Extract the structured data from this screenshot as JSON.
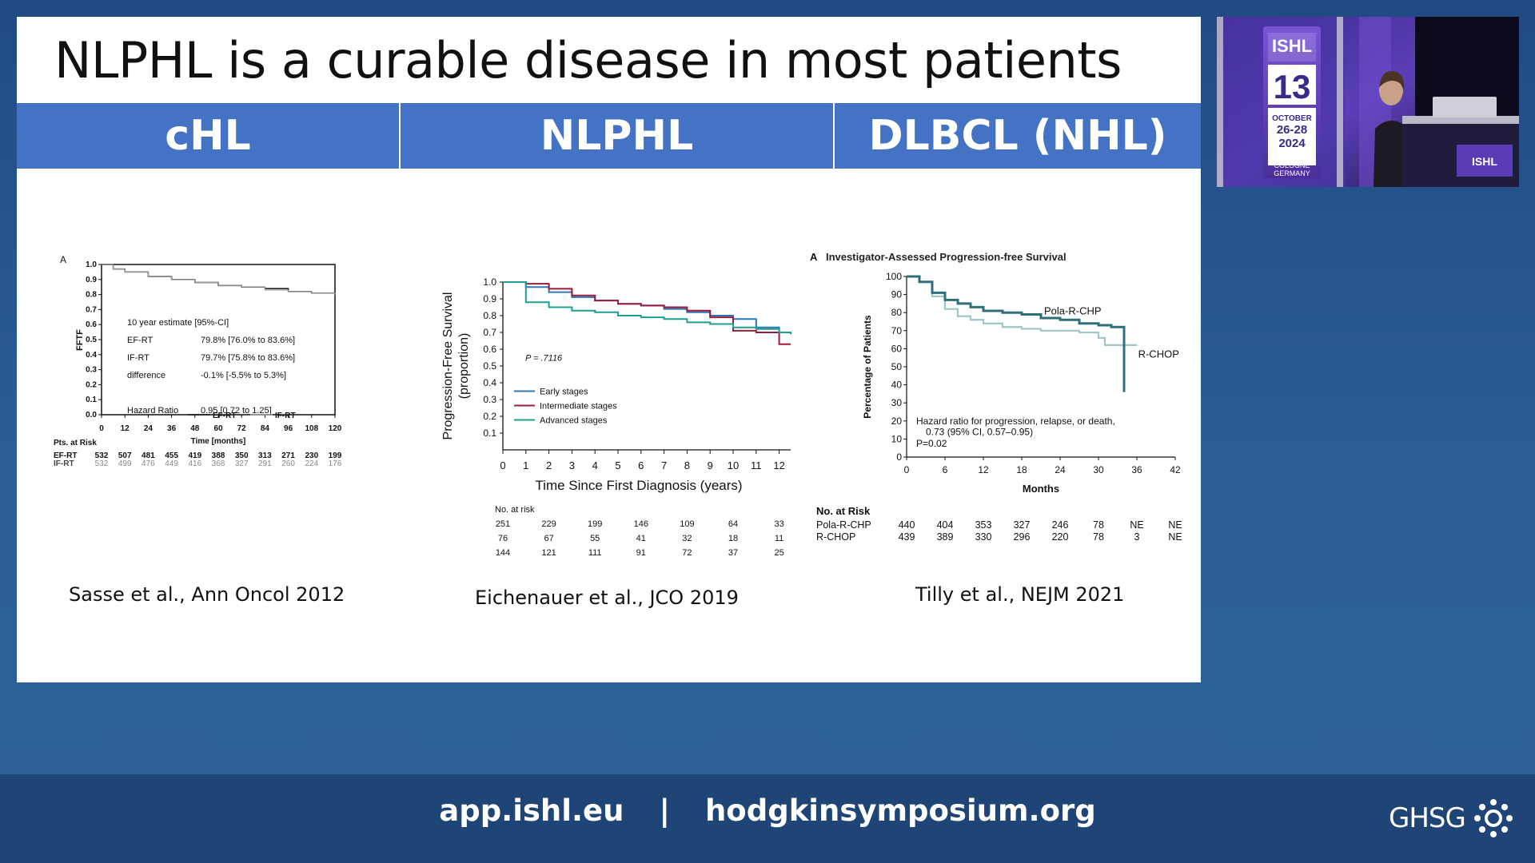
{
  "slide": {
    "title": "NLPHL is a curable disease in most patients",
    "columns": [
      "cHL",
      "NLPHL",
      "DLBCL (NHL)"
    ]
  },
  "citations": {
    "chl": "Sasse et al., Ann Oncol 2012",
    "nlphl": "Eichenauer et al., JCO 2019",
    "dlbcl": "Tilly et al., NEJM 2021"
  },
  "footer": {
    "link1": "app.ishl.eu",
    "separator": "|",
    "link2": "hodgkinsymposium.org",
    "logo_text": "GHSG"
  },
  "inset": {
    "banner_logo": "ISHL",
    "banner_number": "13",
    "banner_date_month": "OCTOBER",
    "banner_date_days": "26-28",
    "banner_date_year": "2024",
    "banner_city": "COLOGNE",
    "banner_country": "GERMANY"
  },
  "colors": {
    "header_band": "#4472c4",
    "nlphl_early": "#2e75b6",
    "nlphl_intermediate": "#9b1b3b",
    "nlphl_advanced": "#1aa090",
    "polar_rchp": "#2f6f7a",
    "rchop": "#9ec5c8"
  },
  "chart_data": [
    {
      "type": "line",
      "panel_letter": "A",
      "title": "",
      "xlabel": "Time [months]",
      "ylabel": "FFTF",
      "xlim": [
        0,
        120
      ],
      "ylim": [
        0,
        1.0
      ],
      "x_ticks": [
        0,
        12,
        24,
        36,
        48,
        60,
        72,
        84,
        96,
        108,
        120
      ],
      "y_ticks": [
        "0.0",
        "0.1",
        "0.2",
        "0.3",
        "0.4",
        "0.5",
        "0.6",
        "0.7",
        "0.8",
        "0.9",
        "1.0"
      ],
      "series": [
        {
          "name": "EF-RT",
          "x": [
            0,
            6,
            12,
            24,
            36,
            48,
            60,
            72,
            84,
            96,
            108,
            120
          ],
          "y": [
            1.0,
            0.97,
            0.95,
            0.92,
            0.9,
            0.88,
            0.86,
            0.85,
            0.84,
            0.82,
            0.81,
            0.8
          ]
        },
        {
          "name": "IF-RT",
          "x": [
            0,
            6,
            12,
            24,
            36,
            48,
            60,
            72,
            84,
            96,
            108,
            120
          ],
          "y": [
            1.0,
            0.97,
            0.95,
            0.92,
            0.9,
            0.88,
            0.86,
            0.85,
            0.83,
            0.82,
            0.81,
            0.8
          ]
        }
      ],
      "annotation_header": "10 year estimate [95%-CI]",
      "annotations": [
        {
          "label": "EF-RT",
          "value": "79.8% [76.0% to 83.6%]"
        },
        {
          "label": "IF-RT",
          "value": "79.7% [75.8% to 83.6%]"
        },
        {
          "label": "difference",
          "value": "-0.1% [-5.5% to 5.3%]"
        },
        {
          "label": "Hazard Ratio",
          "value": "0.95 [0.72 to 1.25]"
        }
      ],
      "legend": [
        "EF-RT",
        "IF-RT"
      ],
      "at_risk_title": "Pts. at Risk",
      "at_risk": [
        {
          "label": "EF-RT",
          "values": [
            "532",
            "507",
            "481",
            "455",
            "419",
            "388",
            "350",
            "313",
            "271",
            "230",
            "199"
          ]
        },
        {
          "label": "IF-RT",
          "values": [
            "532",
            "499",
            "476",
            "449",
            "416",
            "368",
            "327",
            "291",
            "260",
            "224",
            "176"
          ]
        }
      ]
    },
    {
      "type": "line",
      "title": "",
      "xlabel": "Time Since First Diagnosis (years)",
      "ylabel": "Progression-Free Survival (proportion)",
      "ylabel_line1": "Progression-Free Survival",
      "ylabel_line2": "(proportion)",
      "xlim": [
        0,
        12.5
      ],
      "ylim": [
        0,
        1.0
      ],
      "x_ticks": [
        "0",
        "1",
        "2",
        "3",
        "4",
        "5",
        "6",
        "7",
        "8",
        "9",
        "10",
        "11",
        "12"
      ],
      "y_ticks": [
        "0.1",
        "0.2",
        "0.3",
        "0.4",
        "0.5",
        "0.6",
        "0.7",
        "0.8",
        "0.9",
        "1.0"
      ],
      "p_value": "P = .7116",
      "series": [
        {
          "name": "Early stages",
          "x": [
            0,
            1,
            2,
            3,
            4,
            5,
            6,
            7,
            8,
            9,
            10,
            11,
            12,
            12.5
          ],
          "y": [
            1.0,
            0.97,
            0.94,
            0.91,
            0.89,
            0.87,
            0.86,
            0.84,
            0.82,
            0.8,
            0.78,
            0.73,
            0.7,
            0.69
          ]
        },
        {
          "name": "Intermediate stages",
          "x": [
            0,
            1,
            2,
            3,
            4,
            5,
            6,
            7,
            8,
            9,
            10,
            11,
            12,
            12.5
          ],
          "y": [
            1.0,
            0.99,
            0.96,
            0.92,
            0.89,
            0.87,
            0.86,
            0.85,
            0.83,
            0.79,
            0.71,
            0.7,
            0.63,
            0.63
          ]
        },
        {
          "name": "Advanced stages",
          "x": [
            0,
            1,
            2,
            3,
            4,
            5,
            6,
            7,
            8,
            9,
            10,
            11,
            12,
            12.5
          ],
          "y": [
            1.0,
            0.88,
            0.85,
            0.83,
            0.82,
            0.8,
            0.79,
            0.78,
            0.76,
            0.75,
            0.73,
            0.72,
            0.7,
            0.69
          ]
        }
      ],
      "legend": [
        "Early stages",
        "Intermediate stages",
        "Advanced stages"
      ],
      "at_risk_title": "No. at risk",
      "at_risk_x": [
        0,
        2,
        4,
        6,
        8,
        10,
        12
      ],
      "at_risk": [
        {
          "values": [
            "251",
            "229",
            "199",
            "146",
            "109",
            "64",
            "33"
          ]
        },
        {
          "values": [
            "76",
            "67",
            "55",
            "41",
            "32",
            "18",
            "11"
          ]
        },
        {
          "values": [
            "144",
            "121",
            "111",
            "91",
            "72",
            "37",
            "25"
          ]
        }
      ]
    },
    {
      "type": "line",
      "panel_letter": "A",
      "title": "Investigator-Assessed Progression-free Survival",
      "xlabel": "Months",
      "ylabel": "Percentage of Patients",
      "xlim": [
        0,
        42
      ],
      "ylim": [
        0,
        100
      ],
      "x_ticks": [
        "0",
        "6",
        "12",
        "18",
        "24",
        "30",
        "36",
        "42"
      ],
      "y_ticks": [
        "0",
        "10",
        "20",
        "30",
        "40",
        "50",
        "60",
        "70",
        "80",
        "90",
        "100"
      ],
      "series": [
        {
          "name": "Pola-R-CHP",
          "x": [
            0,
            2,
            4,
            6,
            8,
            10,
            12,
            15,
            18,
            21,
            24,
            27,
            30,
            32,
            33,
            34
          ],
          "y": [
            100,
            97,
            91,
            87,
            85,
            83,
            81,
            80,
            79,
            77,
            76,
            74,
            73,
            72,
            72,
            36
          ]
        },
        {
          "name": "R-CHOP",
          "x": [
            0,
            2,
            4,
            6,
            8,
            10,
            12,
            15,
            18,
            21,
            24,
            27,
            30,
            31,
            33,
            36
          ],
          "y": [
            100,
            97,
            89,
            82,
            78,
            76,
            74,
            72,
            71,
            70,
            70,
            69,
            66,
            62,
            62,
            62
          ]
        }
      ],
      "series_labels": [
        "Pola-R-CHP",
        "R-CHOP"
      ],
      "annotation_line1": "Hazard ratio for progression, relapse, or death,",
      "annotation_line2": "0.73 (95% CI, 0.57–0.95)",
      "annotation_line3": "P=0.02",
      "at_risk_title": "No. at Risk",
      "at_risk": [
        {
          "label": "Pola-R-CHP",
          "values": [
            "440",
            "404",
            "353",
            "327",
            "246",
            "78",
            "NE",
            "NE"
          ]
        },
        {
          "label": "R-CHOP",
          "values": [
            "439",
            "389",
            "330",
            "296",
            "220",
            "78",
            "3",
            "NE"
          ]
        }
      ]
    }
  ]
}
